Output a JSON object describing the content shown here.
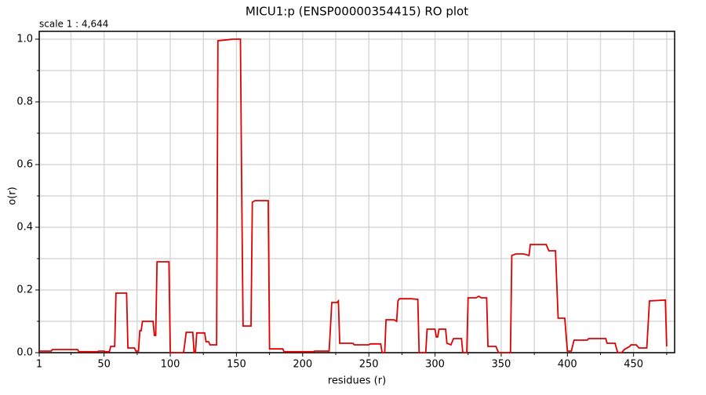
{
  "chart_data": {
    "type": "line",
    "title": "MICU1:p (ENSP00000354415) RO plot",
    "annotation": "scale 1 : 4,644",
    "xlabel": "residues (r)",
    "ylabel": "o(r)",
    "xlim": [
      1,
      481
    ],
    "ylim": [
      0,
      1.025
    ],
    "xticks": [
      1,
      50,
      100,
      150,
      200,
      250,
      300,
      350,
      400,
      450
    ],
    "x_minor_ticks": [
      25,
      75,
      125,
      175,
      225,
      275,
      325,
      375,
      425,
      475
    ],
    "yticks": [
      {
        "value": 0,
        "label": "0.0"
      },
      0.2,
      0.4,
      0.6,
      0.8,
      {
        "value": 1,
        "label": "1.0"
      }
    ],
    "y_minor_ticks": [
      0.1,
      0.3,
      0.5,
      0.7,
      0.9
    ],
    "grid": true,
    "series": [
      {
        "name": "RO",
        "color": "#e00000",
        "x": [
          1,
          10,
          11,
          30,
          31,
          45,
          46,
          50,
          51,
          54,
          55,
          58,
          59,
          67,
          68,
          73,
          74,
          76,
          77,
          78,
          79,
          87,
          88,
          89,
          90,
          99,
          100,
          109,
          110,
          111,
          112,
          117,
          118,
          119,
          120,
          126,
          127,
          129,
          130,
          135,
          136,
          143,
          147,
          153,
          154,
          155,
          161,
          162,
          164,
          174,
          175,
          185,
          186,
          208,
          209,
          220,
          221,
          222,
          226,
          227,
          228,
          238,
          239,
          250,
          251,
          259,
          260,
          262,
          263,
          269,
          271,
          272,
          273,
          282,
          287,
          288,
          293,
          294,
          300,
          301,
          302,
          303,
          308,
          309,
          312,
          314,
          320,
          321,
          324,
          325,
          331,
          333,
          335,
          339,
          340,
          346,
          348,
          356,
          357,
          358,
          361,
          367,
          371,
          372,
          384,
          385,
          386,
          391,
          393,
          398,
          400,
          403,
          405,
          415,
          416,
          429,
          430,
          436,
          438,
          441,
          443,
          447,
          448,
          452,
          454,
          460,
          462,
          474,
          475
        ],
        "values": [
          0.005,
          0.005,
          0.01,
          0.01,
          0.003,
          0.003,
          0.005,
          0.005,
          0.003,
          0.003,
          0.02,
          0.02,
          0.19,
          0.19,
          0.015,
          0.015,
          0.005,
          0.005,
          0.07,
          0.07,
          0.1,
          0.1,
          0.055,
          0.055,
          0.29,
          0.29,
          0,
          0,
          0,
          0.03,
          0.065,
          0.065,
          0,
          0,
          0.063,
          0.063,
          0.035,
          0.035,
          0.025,
          0.025,
          0.995,
          0.998,
          1.0,
          1.0,
          0.5,
          0.085,
          0.085,
          0.48,
          0.485,
          0.485,
          0.012,
          0.012,
          0.003,
          0.003,
          0.005,
          0.005,
          0.08,
          0.16,
          0.16,
          0.165,
          0.03,
          0.03,
          0.025,
          0.025,
          0.028,
          0.028,
          0,
          0,
          0.105,
          0.105,
          0.1,
          0.165,
          0.172,
          0.172,
          0.17,
          0,
          0,
          0.075,
          0.075,
          0.05,
          0.05,
          0.075,
          0.075,
          0.03,
          0.025,
          0.045,
          0.045,
          0,
          0,
          0.175,
          0.175,
          0.18,
          0.175,
          0.175,
          0.02,
          0.02,
          0,
          0,
          0,
          0.31,
          0.315,
          0.315,
          0.31,
          0.345,
          0.345,
          0.335,
          0.325,
          0.325,
          0.11,
          0.11,
          0.005,
          0.005,
          0.04,
          0.04,
          0.045,
          0.045,
          0.03,
          0.03,
          0,
          0,
          0.01,
          0.02,
          0.025,
          0.025,
          0.015,
          0.015,
          0.165,
          0.168,
          0.02
        ]
      }
    ]
  }
}
